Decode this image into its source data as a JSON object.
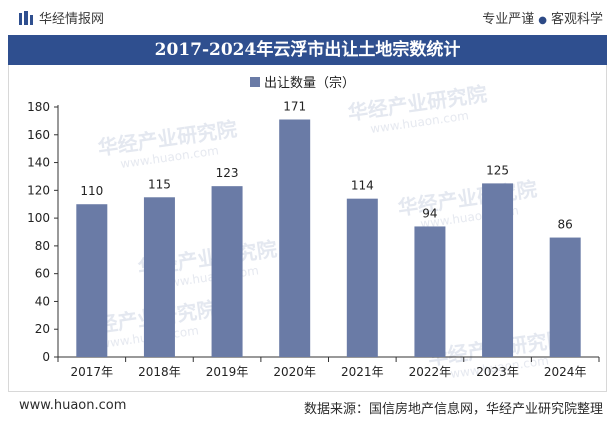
{
  "header": {
    "brand": "华经情报网",
    "slogan_left": "专业严谨",
    "slogan_right": "客观科学",
    "brand_color": "#2f4f8f"
  },
  "title": "2017-2024年云浮市出让土地宗数统计",
  "chart_data": {
    "type": "bar",
    "categories": [
      "2017年",
      "2018年",
      "2019年",
      "2020年",
      "2021年",
      "2022年",
      "2023年",
      "2024年"
    ],
    "series": [
      {
        "name": "出让数量（宗）",
        "values": [
          110,
          115,
          123,
          171,
          114,
          94,
          125,
          86
        ],
        "color": "#6a7ba6"
      }
    ],
    "ylim": [
      0,
      180
    ],
    "yticks": [
      0,
      20,
      40,
      60,
      80,
      100,
      120,
      140,
      160,
      180
    ],
    "xlabel": "",
    "ylabel": "",
    "legend_position": "top-center",
    "grid": false,
    "data_labels": true
  },
  "watermark": {
    "text_cn": "华经产业研究院",
    "text_url": "www.huaon.com"
  },
  "footer": {
    "website": "www.huaon.com",
    "source": "数据来源：国信房地产信息网，华经产业研究院整理"
  }
}
